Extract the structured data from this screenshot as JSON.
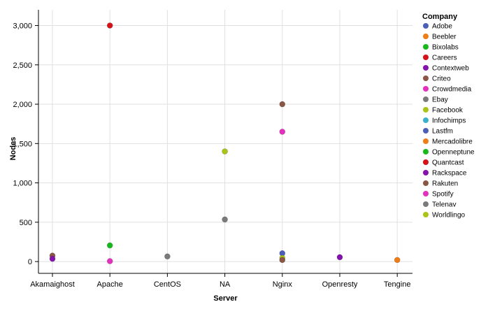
{
  "chart_data": {
    "type": "scatter",
    "xlabel": "Server",
    "ylabel": "Nodes",
    "categories": [
      "Akamaighost",
      "Apache",
      "CentOS",
      "NA",
      "Nginx",
      "Openresty",
      "Tengine"
    ],
    "ylim": [
      -150,
      3200
    ],
    "yticks": [
      0,
      500,
      1000,
      1500,
      2000,
      2500,
      3000
    ],
    "ytick_labels": [
      "0",
      "500",
      "1,000",
      "1,500",
      "2,000",
      "2,500",
      "3,000"
    ],
    "grid": true,
    "legend": {
      "title": "Company",
      "placement": "right",
      "entries": [
        {
          "name": "Adobe",
          "color": "#4c5fb8"
        },
        {
          "name": "Beebler",
          "color": "#ee7d16"
        },
        {
          "name": "Bixolabs",
          "color": "#17b81c"
        },
        {
          "name": "Careers",
          "color": "#d51218"
        },
        {
          "name": "Contextweb",
          "color": "#8512ae"
        },
        {
          "name": "Criteo",
          "color": "#8a5646"
        },
        {
          "name": "Crowdmedia",
          "color": "#e52fbf"
        },
        {
          "name": "Ebay",
          "color": "#7a7a7a"
        },
        {
          "name": "Facebook",
          "color": "#acc417"
        },
        {
          "name": "Infochimps",
          "color": "#3bb1cc"
        },
        {
          "name": "Lastfm",
          "color": "#4c5fb8"
        },
        {
          "name": "Mercadolibre",
          "color": "#ee7d16"
        },
        {
          "name": "Openneptune",
          "color": "#17b81c"
        },
        {
          "name": "Quantcast",
          "color": "#d51218"
        },
        {
          "name": "Rackspace",
          "color": "#8512ae"
        },
        {
          "name": "Rakuten",
          "color": "#8a5646"
        },
        {
          "name": "Spotify",
          "color": "#e52fbf"
        },
        {
          "name": "Telenav",
          "color": "#7a7a7a"
        },
        {
          "name": "Worldlingo",
          "color": "#acc417"
        }
      ]
    },
    "points": [
      {
        "x": "Akamaighost",
        "y": 75,
        "company": "Criteo"
      },
      {
        "x": "Akamaighost",
        "y": 35,
        "company": "Contextweb"
      },
      {
        "x": "Apache",
        "y": 3000,
        "company": "Careers"
      },
      {
        "x": "Apache",
        "y": 205,
        "company": "Bixolabs"
      },
      {
        "x": "Apache",
        "y": 5,
        "company": "Crowdmedia"
      },
      {
        "x": "CentOS",
        "y": 65,
        "company": "Ebay"
      },
      {
        "x": "NA",
        "y": 1400,
        "company": "Facebook"
      },
      {
        "x": "NA",
        "y": 535,
        "company": "Ebay"
      },
      {
        "x": "Nginx",
        "y": 2000,
        "company": "Rakuten"
      },
      {
        "x": "Nginx",
        "y": 1650,
        "company": "Spotify"
      },
      {
        "x": "Nginx",
        "y": 105,
        "company": "Lastfm"
      },
      {
        "x": "Nginx",
        "y": 45,
        "company": "Worldlingo"
      },
      {
        "x": "Nginx",
        "y": 20,
        "company": "Rakuten"
      },
      {
        "x": "Openresty",
        "y": 55,
        "company": "Rackspace"
      },
      {
        "x": "Tengine",
        "y": 20,
        "company": "Mercadolibre"
      }
    ]
  }
}
